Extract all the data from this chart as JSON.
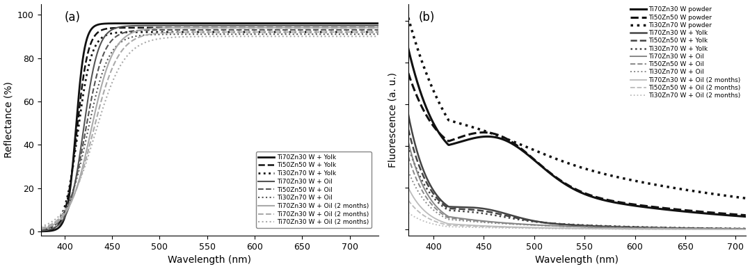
{
  "panel_a": {
    "title": "(a)",
    "xlabel": "Wavelength (nm)",
    "ylabel": "Reflectance (%)",
    "xlim": [
      375,
      730
    ],
    "ylim": [
      -2,
      105
    ],
    "xticks": [
      400,
      450,
      500,
      550,
      600,
      650,
      700
    ],
    "yticks": [
      0,
      20,
      40,
      60,
      80,
      100
    ],
    "series": [
      {
        "label": "Ti70Zn30 W + Yolk",
        "color": "#111111",
        "ls": "solid",
        "lw": 2.0
      },
      {
        "label": "Ti50Zn50 W + Yolk",
        "color": "#111111",
        "ls": "dashed",
        "lw": 1.8
      },
      {
        "label": "Ti30Zn70 W + Yolk",
        "color": "#111111",
        "ls": "dotted",
        "lw": 2.0
      },
      {
        "label": "Ti70Zn30 W + Oil",
        "color": "#555555",
        "ls": "solid",
        "lw": 1.5
      },
      {
        "label": "Ti50Zn50 W + Oil",
        "color": "#555555",
        "ls": "dashed",
        "lw": 1.5
      },
      {
        "label": "Ti30Zn70 W + Oil",
        "color": "#555555",
        "ls": "dotted",
        "lw": 1.5
      },
      {
        "label": "Ti70Zn30 W + Oil (2 months)",
        "color": "#aaaaaa",
        "ls": "solid",
        "lw": 1.5
      },
      {
        "label": "Ti70Zn30 W + Oil (2 months)",
        "color": "#aaaaaa",
        "ls": "dashed",
        "lw": 1.5
      },
      {
        "label": "Ti70Zn30 W + Oil (2 months)",
        "color": "#aaaaaa",
        "ls": "dotted",
        "lw": 1.5
      }
    ]
  },
  "panel_b": {
    "title": "(b)",
    "xlabel": "Wavelength (nm)",
    "ylabel": "Fluorescence (a. u.)",
    "xlim": [
      375,
      710
    ],
    "ylim": [
      -0.03,
      1.08
    ],
    "xticks": [
      400,
      450,
      500,
      550,
      600,
      650,
      700
    ],
    "series": [
      {
        "label": "Ti70Zn30 W powder",
        "color": "#111111",
        "ls": "solid",
        "lw": 2.2
      },
      {
        "label": "Ti50Zn50 W powder",
        "color": "#111111",
        "ls": "dashed",
        "lw": 2.2
      },
      {
        "label": "Ti30Zn70 W powder",
        "color": "#111111",
        "ls": "dotted",
        "lw": 2.5
      },
      {
        "label": "Ti70Zn30 W + Yolk",
        "color": "#444444",
        "ls": "solid",
        "lw": 1.8
      },
      {
        "label": "Ti50Zn50 W + Yolk",
        "color": "#444444",
        "ls": "dashed",
        "lw": 1.8
      },
      {
        "label": "Ti30Zn70 W + Yolk",
        "color": "#444444",
        "ls": "dotted",
        "lw": 1.8
      },
      {
        "label": "Ti70Zn30 W + Oil",
        "color": "#888888",
        "ls": "solid",
        "lw": 1.4
      },
      {
        "label": "Ti50Zn50 W + Oil",
        "color": "#888888",
        "ls": "dashed",
        "lw": 1.4
      },
      {
        "label": "Ti30Zn70 W + Oil",
        "color": "#888888",
        "ls": "dotted",
        "lw": 1.4
      },
      {
        "label": "Ti70Zn30 W + Oil (2 months)",
        "color": "#bbbbbb",
        "ls": "solid",
        "lw": 1.3
      },
      {
        "label": "Ti50Zn50 W + Oil (2 months)",
        "color": "#bbbbbb",
        "ls": "dashed",
        "lw": 1.3
      },
      {
        "label": "Ti30Zn70 W + Oil (2 months)",
        "color": "#bbbbbb",
        "ls": "dotted",
        "lw": 1.3
      }
    ]
  },
  "legend_fontsize": 6.5,
  "axis_fontsize": 10,
  "tick_fontsize": 9
}
